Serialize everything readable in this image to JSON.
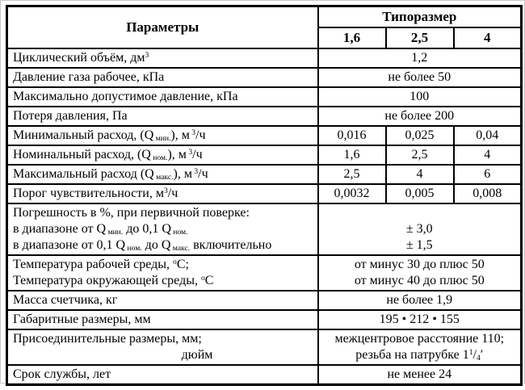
{
  "table": {
    "header": {
      "params_label": "Параметры",
      "size_label": "Типоразмер",
      "sizes": [
        "1,6",
        "2,5",
        "4"
      ]
    },
    "rows": [
      {
        "label": [
          "Циклический объём,  дм<sup>3</sup>"
        ],
        "value_span": [
          "1,2"
        ]
      },
      {
        "label": [
          "Давление газа рабочее,  кПа"
        ],
        "value_span": [
          "не более 50"
        ]
      },
      {
        "label": [
          "Максимально допустимое давление,  кПа"
        ],
        "value_span": [
          "100"
        ]
      },
      {
        "label": [
          "Потеря давления, Па"
        ],
        "value_span": [
          "не более  200"
        ]
      },
      {
        "label": [
          "Минимальный расход, (Q<sub> мин.</sub>),  м<sup> 3</sup>/ч"
        ],
        "value_cols": [
          "0,016",
          "0,025",
          "0,04"
        ]
      },
      {
        "label": [
          "Номинальный расход, (Q<sub> ном.</sub>),  м<sup> 3</sup>/ч"
        ],
        "value_cols": [
          "1,6",
          "2,5",
          "4"
        ]
      },
      {
        "label": [
          "Максимальный расход (Q<sub> макс.</sub>),  м<sup> 3</sup>/ч"
        ],
        "value_cols": [
          "2,5",
          "4",
          "6"
        ]
      },
      {
        "label": [
          "Порог чувствительности,  м<sup>3</sup>/ч"
        ],
        "value_cols": [
          "0,0032",
          "0,005",
          "0,008"
        ]
      },
      {
        "label": [
          "Погрешность в %, при первичной поверке:",
          "в диапазоне от Q<sub> мин.</sub> до  0,1 Q<sub> ном.</sub>",
          "в диапазоне от 0,1 Q<sub> ном.</sub> до  Q<sub> макс.</sub> включительно"
        ],
        "value_span": [
          "",
          "± 3,0",
          "± 1,5"
        ]
      },
      {
        "label": [
          "Температура рабочей среды, <sup>о</sup>С;",
          "Температура окружающей среды, <sup>о</sup>С"
        ],
        "value_span": [
          "от минус 30 до плюс 50",
          "от минус 40 до плюс 50"
        ]
      },
      {
        "label": [
          "Масса счетчика, кг"
        ],
        "value_span": [
          "не более  1,9"
        ]
      },
      {
        "label": [
          "Габаритные размеры,  мм"
        ],
        "value_span": [
          "195 • 212 • 155"
        ]
      },
      {
        "label": [
          "Присоединительные размеры,  мм;",
          "дюйм"
        ],
        "value_span": [
          "межцентровое расстояние 110;",
          "резьба на патрубке 1<sup>1</sup>/<sub>4</sub>′"
        ]
      },
      {
        "label": [
          "Срок службы, лет"
        ],
        "value_span": [
          "не менее  24"
        ]
      }
    ]
  }
}
